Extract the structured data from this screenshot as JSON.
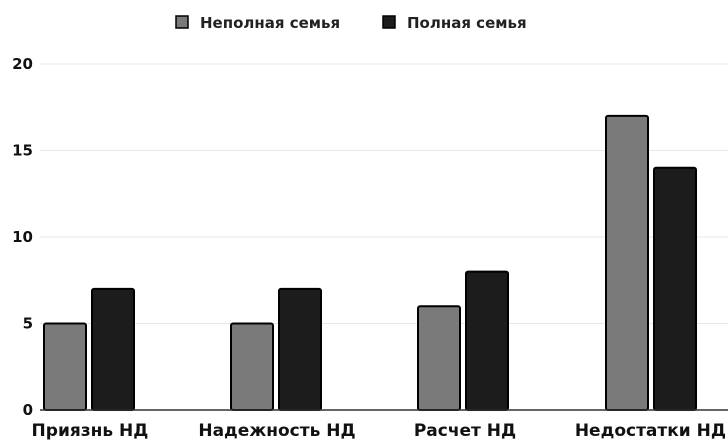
{
  "chart_data": {
    "type": "bar",
    "title": "",
    "xlabel": "",
    "ylabel": "",
    "categories": [
      "Приязнь НД",
      "Надежность НД",
      "Расчет НД",
      "Недостатки НД"
    ],
    "series": [
      {
        "name": "Неполная семья",
        "values": [
          5,
          5,
          6,
          17
        ],
        "color": "#7a7a7a"
      },
      {
        "name": "Полная семья",
        "values": [
          7,
          7,
          8,
          14
        ],
        "color": "#1c1c1c"
      }
    ],
    "ylim": [
      0,
      20
    ],
    "yticks": [
      0,
      5,
      10,
      15,
      20
    ],
    "grid": true,
    "legend_position": "top-center"
  }
}
